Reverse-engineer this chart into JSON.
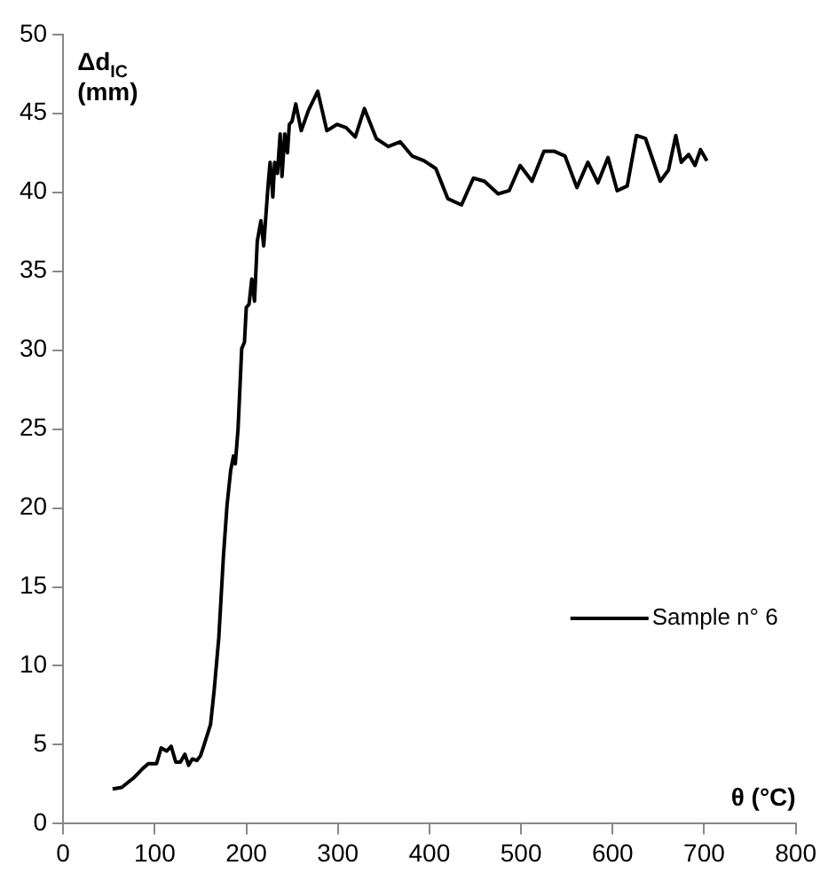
{
  "chart_data": {
    "type": "line",
    "xlabel": "θ (°C)",
    "ylabel": "Δd$_{IC}$ (mm)",
    "xlim": [
      0,
      800
    ],
    "xticks": [
      0,
      100,
      200,
      300,
      400,
      500,
      600,
      700,
      800
    ],
    "ylim": [
      0,
      50
    ],
    "yticks": [
      0,
      5,
      10,
      15,
      20,
      25,
      30,
      35,
      40,
      45,
      50
    ],
    "grid": false,
    "legend": "right",
    "marker": "none",
    "line_style": "solid",
    "series": [
      {
        "name": "Sample n° 6",
        "color": "#000000",
        "x": [
          54,
          64,
          77,
          87,
          93,
          102,
          107,
          113,
          118,
          123,
          128,
          133,
          137,
          141,
          146,
          150,
          154,
          161,
          165,
          170,
          175,
          179,
          183,
          186,
          188,
          191,
          195,
          198,
          200,
          203,
          206,
          209,
          212,
          216,
          219,
          221,
          224,
          226,
          229,
          231,
          234,
          237,
          239,
          242,
          245,
          247,
          250,
          254,
          260,
          268,
          278,
          288,
          299,
          309,
          319,
          329,
          342,
          355,
          368,
          381,
          394,
          407,
          420,
          435,
          448,
          460,
          475,
          487,
          499,
          512,
          525,
          536,
          548,
          561,
          573,
          584,
          595,
          605,
          616,
          626,
          636,
          652,
          661,
          669,
          675,
          683,
          690,
          696,
          703
        ],
        "values": [
          2.2,
          2.3,
          2.9,
          3.5,
          3.8,
          3.8,
          4.8,
          4.6,
          4.9,
          3.9,
          3.9,
          4.4,
          3.7,
          4.1,
          4.0,
          4.3,
          5.0,
          6.3,
          8.5,
          11.8,
          16.9,
          20.2,
          22.4,
          23.3,
          22.8,
          25.0,
          30.1,
          30.5,
          32.7,
          32.9,
          34.5,
          33.1,
          36.9,
          38.2,
          36.6,
          38.2,
          40.6,
          41.9,
          39.7,
          41.9,
          41.2,
          43.7,
          41.0,
          43.7,
          42.5,
          44.3,
          44.5,
          45.6,
          43.9,
          45.2,
          46.4,
          43.9,
          44.3,
          44.1,
          43.5,
          45.3,
          43.4,
          42.9,
          43.2,
          42.3,
          42.0,
          41.5,
          39.6,
          39.2,
          40.9,
          40.7,
          39.9,
          40.1,
          41.7,
          40.7,
          42.6,
          42.6,
          42.3,
          40.3,
          41.9,
          40.6,
          42.2,
          40.1,
          40.4,
          43.6,
          43.4,
          40.7,
          41.4,
          43.6,
          41.9,
          42.4,
          41.7,
          42.7,
          42.0
        ]
      }
    ]
  }
}
